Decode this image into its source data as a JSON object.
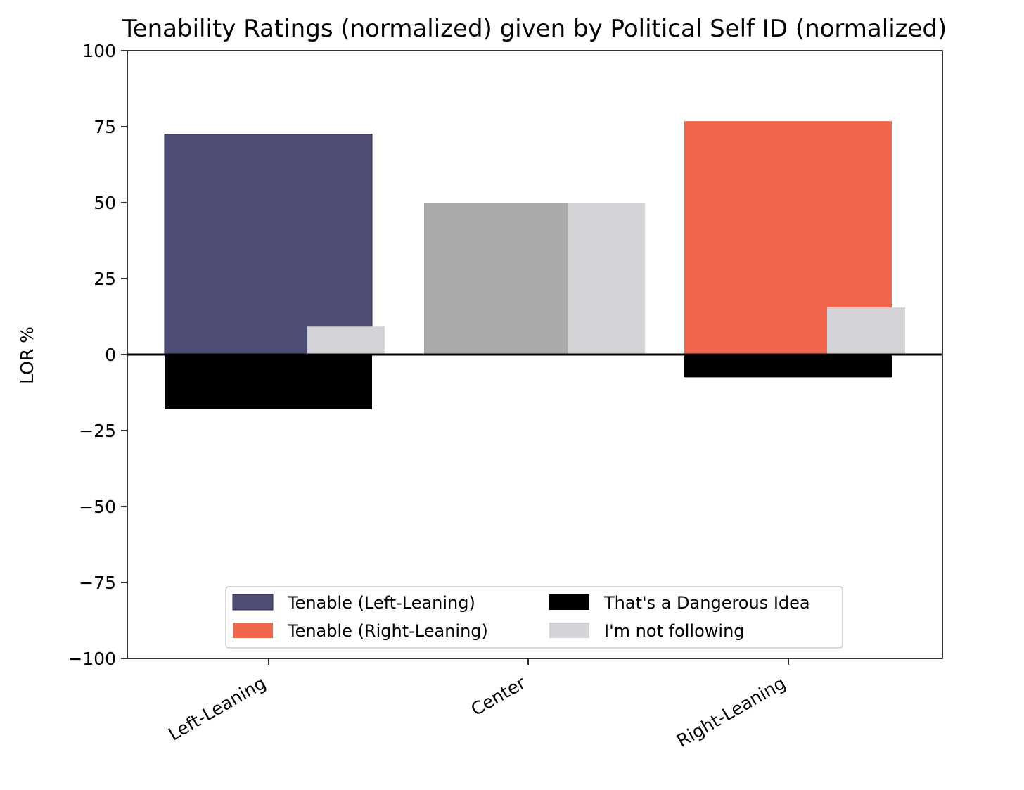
{
  "chart_data": {
    "type": "bar",
    "title": "Tenability Ratings (normalized) given by Political Self ID (normalized)",
    "xlabel": "",
    "ylabel": "LOR %",
    "ylim": [
      -100,
      100
    ],
    "yticks": [
      100,
      75,
      50,
      25,
      0,
      -25,
      -50,
      -75,
      -100
    ],
    "ytick_labels": [
      "100",
      "75",
      "50",
      "25",
      "0",
      "−25",
      "−50",
      "−75",
      "−100"
    ],
    "categories": [
      "Left-Leaning",
      "Center",
      "Right-Leaning"
    ],
    "center_bar": {
      "name": "Center",
      "value": 50,
      "color": "#aaaaaa"
    },
    "series": [
      {
        "name": "Tenable (Left-Leaning)",
        "color": "#4d4d75",
        "values": [
          72.5,
          null,
          null
        ]
      },
      {
        "name": "Tenable (Right-Leaning)",
        "color": "#f0654b",
        "values": [
          null,
          null,
          76.8
        ]
      },
      {
        "name": "That's a Dangerous Idea",
        "color": "#000000",
        "values": [
          -18,
          null,
          -7.5
        ]
      },
      {
        "name": "I'm not following",
        "color": "#d3d3d7",
        "values": [
          9.2,
          50,
          15.5
        ]
      }
    ],
    "legend": {
      "position": "lower-center",
      "entries": [
        {
          "label": "Tenable (Left-Leaning)",
          "color": "#4d4d75"
        },
        {
          "label": "That's a Dangerous Idea",
          "color": "#000000"
        },
        {
          "label": "Tenable (Right-Leaning)",
          "color": "#f0654b"
        },
        {
          "label": "I'm not following",
          "color": "#d3d3d7"
        }
      ]
    },
    "zero_line": true,
    "grid": false
  }
}
